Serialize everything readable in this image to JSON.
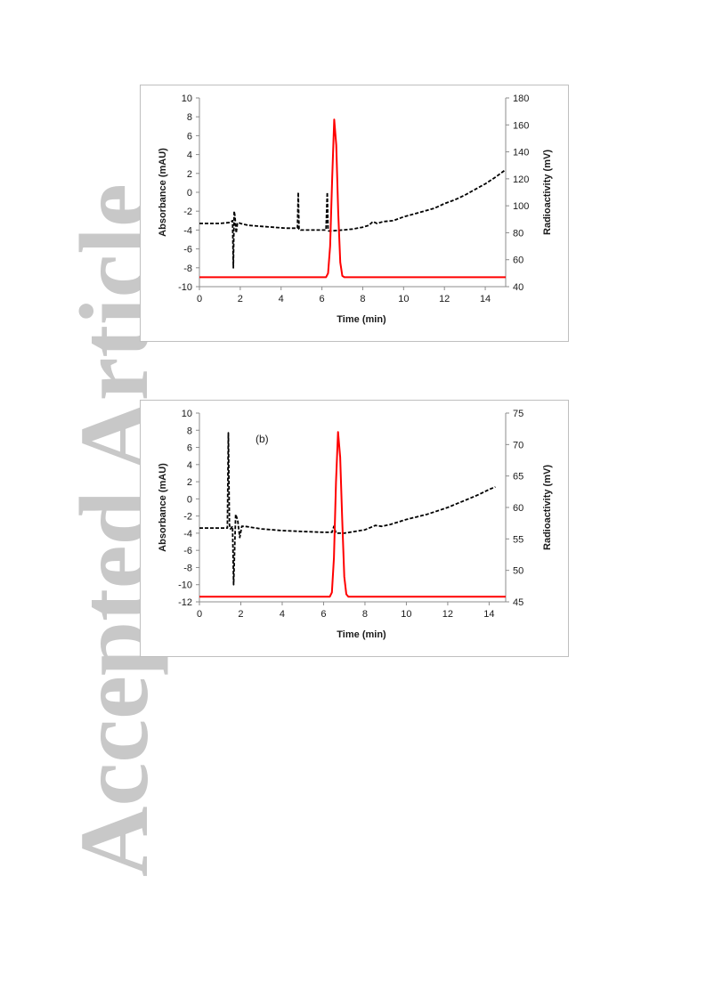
{
  "watermark": {
    "text": "Accepted Article"
  },
  "chart_data": [
    {
      "type": "line",
      "panel_label": "",
      "xlabel": "Time (min)",
      "ylabel": "Absorbance (mAU)",
      "y2label": "Radioactivity (mV)",
      "xlim": [
        0,
        15
      ],
      "ylim": [
        -10,
        10
      ],
      "y2lim": [
        40,
        180
      ],
      "xticks": [
        0,
        2,
        4,
        6,
        8,
        10,
        12,
        14
      ],
      "yticks": [
        -10,
        -8,
        -6,
        -4,
        -2,
        0,
        2,
        4,
        6,
        8,
        10
      ],
      "y2ticks": [
        40,
        60,
        80,
        100,
        120,
        140,
        160,
        180
      ],
      "grid": false,
      "series": [
        {
          "axis": "left",
          "color": "#000000",
          "style": "dashed",
          "x": [
            0,
            1.0,
            1.5,
            1.62,
            1.66,
            1.7,
            1.74,
            1.8,
            1.86,
            1.92,
            2.0,
            2.4,
            3.0,
            3.6,
            4.2,
            4.8,
            4.84,
            4.88,
            4.92,
            4.96,
            5.0,
            5.5,
            6.0,
            6.2,
            6.26,
            6.3,
            6.34,
            6.4,
            7.0,
            7.5,
            8.0,
            8.3,
            8.5,
            8.7,
            9.0,
            9.5,
            10.0,
            10.5,
            11.0,
            11.5,
            12.0,
            12.5,
            13.0,
            13.5,
            14.0,
            14.5,
            15.0
          ],
          "y": [
            -3.3,
            -3.3,
            -3.2,
            -3.0,
            -8.0,
            -2.0,
            -2.5,
            -4.3,
            -3.3,
            -3.2,
            -3.3,
            -3.5,
            -3.6,
            -3.7,
            -3.8,
            -3.8,
            0.0,
            -3.9,
            -3.9,
            -4.0,
            -4.0,
            -4.0,
            -4.0,
            -4.0,
            0.0,
            -4.0,
            -4.1,
            -4.1,
            -4.0,
            -3.9,
            -3.7,
            -3.5,
            -3.1,
            -3.3,
            -3.1,
            -3.0,
            -2.6,
            -2.3,
            -2.0,
            -1.7,
            -1.2,
            -0.8,
            -0.3,
            0.3,
            0.9,
            1.6,
            2.4
          ]
        },
        {
          "axis": "right",
          "color": "#ff0000",
          "style": "solid",
          "x": [
            0,
            6.2,
            6.3,
            6.4,
            6.5,
            6.6,
            6.7,
            6.8,
            6.9,
            7.0,
            7.1,
            15.0
          ],
          "y": [
            47,
            47,
            50,
            70,
            120,
            164,
            145,
            95,
            58,
            48,
            47,
            47
          ]
        }
      ]
    },
    {
      "type": "line",
      "panel_label": "(b)",
      "xlabel": "Time (min)",
      "ylabel": "Absorbance (mAU)",
      "y2label": "Radioactivity (mV)",
      "xlim": [
        0,
        14.8
      ],
      "ylim": [
        -12,
        10
      ],
      "y2lim": [
        45,
        75
      ],
      "xticks": [
        0,
        2,
        4,
        6,
        8,
        10,
        12,
        14
      ],
      "yticks": [
        -12,
        -10,
        -8,
        -6,
        -4,
        -2,
        0,
        2,
        4,
        6,
        8,
        10
      ],
      "y2ticks": [
        45,
        50,
        55,
        60,
        65,
        70,
        75
      ],
      "grid": false,
      "series": [
        {
          "axis": "left",
          "color": "#000000",
          "style": "dashed",
          "x": [
            0,
            1.0,
            1.35,
            1.4,
            1.45,
            1.5,
            1.6,
            1.65,
            1.75,
            1.85,
            1.95,
            2.05,
            2.2,
            3.0,
            4.0,
            5.0,
            6.0,
            6.4,
            6.5,
            6.6,
            7.0,
            7.5,
            8.0,
            8.3,
            8.5,
            8.8,
            9.2,
            9.6,
            10.0,
            10.5,
            11.0,
            11.5,
            12.0,
            12.5,
            13.0,
            13.5,
            14.0,
            14.3
          ],
          "y": [
            -3.4,
            -3.4,
            -3.4,
            7.7,
            -3.0,
            -3.5,
            -3.2,
            -10.0,
            -1.8,
            -2.5,
            -4.5,
            -3.2,
            -3.2,
            -3.5,
            -3.7,
            -3.8,
            -3.9,
            -3.9,
            -3.2,
            -4.0,
            -4.0,
            -3.8,
            -3.6,
            -3.3,
            -3.1,
            -3.2,
            -3.0,
            -2.7,
            -2.4,
            -2.1,
            -1.8,
            -1.4,
            -1.0,
            -0.5,
            0.0,
            0.5,
            1.1,
            1.4
          ]
        },
        {
          "axis": "right",
          "color": "#ff0000",
          "style": "solid",
          "x": [
            0,
            6.3,
            6.4,
            6.5,
            6.6,
            6.7,
            6.8,
            6.9,
            7.0,
            7.1,
            7.2,
            14.8
          ],
          "y": [
            45.8,
            45.8,
            46.5,
            52,
            64,
            72,
            68,
            58,
            49,
            46.2,
            45.8,
            45.8
          ]
        }
      ]
    }
  ]
}
